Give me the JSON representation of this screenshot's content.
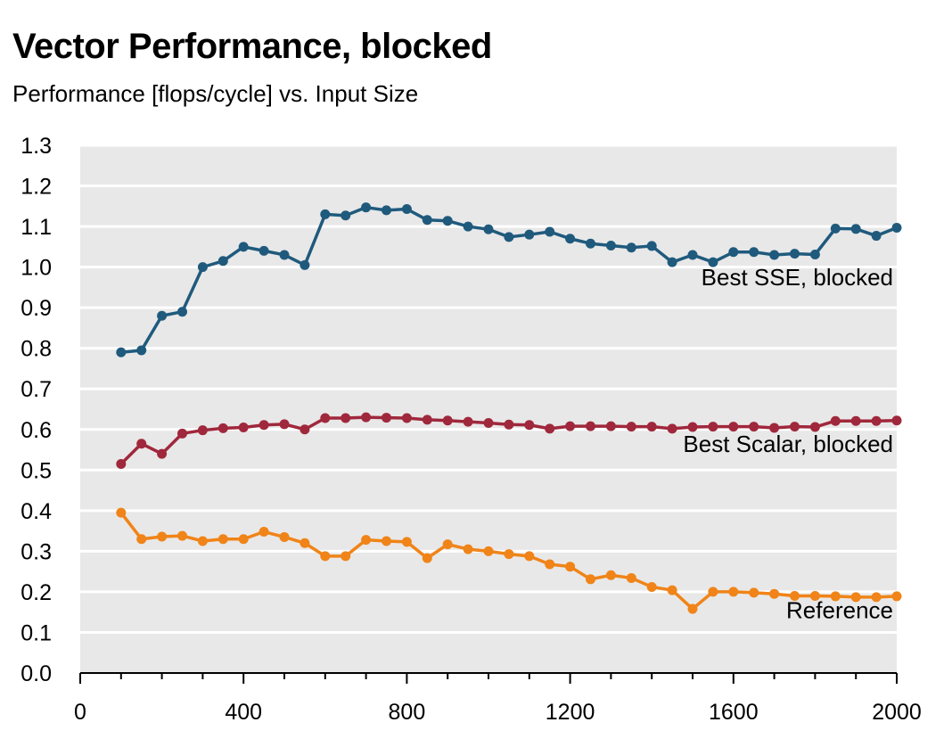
{
  "title": "Vector Performance, blocked",
  "subtitle": "Performance [flops/cycle] vs. Input Size",
  "chart_data": {
    "type": "line",
    "title": "Vector Performance, blocked",
    "subtitle": "Performance [flops/cycle] vs. Input Size",
    "xlabel": "",
    "ylabel": "",
    "xlim": [
      0,
      2000
    ],
    "ylim": [
      0,
      1.3
    ],
    "x_ticks": [
      "0",
      "400",
      "800",
      "1200",
      "1600",
      "2000"
    ],
    "y_ticks": [
      "0.0",
      "0.1",
      "0.2",
      "0.3",
      "0.4",
      "0.5",
      "0.6",
      "0.7",
      "0.8",
      "0.9",
      "1.0",
      "1.1",
      "1.2",
      "1.3"
    ],
    "grid": true,
    "background": "#e8e8e8",
    "x": [
      100,
      150,
      200,
      250,
      300,
      350,
      400,
      450,
      500,
      550,
      600,
      650,
      700,
      750,
      800,
      850,
      900,
      950,
      1000,
      1050,
      1100,
      1150,
      1200,
      1250,
      1300,
      1350,
      1400,
      1450,
      1500,
      1550,
      1600,
      1650,
      1700,
      1750,
      1800,
      1850,
      1900,
      1950,
      2000
    ],
    "series": [
      {
        "name": "Best SSE, blocked",
        "color": "#1f5a7d",
        "values": [
          0.79,
          0.795,
          0.88,
          0.89,
          1.0,
          1.015,
          1.05,
          1.04,
          1.03,
          1.005,
          1.13,
          1.127,
          1.147,
          1.14,
          1.143,
          1.116,
          1.114,
          1.1,
          1.093,
          1.074,
          1.08,
          1.087,
          1.07,
          1.058,
          1.053,
          1.048,
          1.052,
          1.012,
          1.03,
          1.012,
          1.037,
          1.037,
          1.03,
          1.033,
          1.031,
          1.095,
          1.094,
          1.077,
          1.097
        ]
      },
      {
        "name": "Best Scalar, blocked",
        "color": "#a0283c",
        "values": [
          0.515,
          0.565,
          0.54,
          0.59,
          0.598,
          0.603,
          0.605,
          0.611,
          0.613,
          0.6,
          0.628,
          0.628,
          0.63,
          0.629,
          0.628,
          0.624,
          0.622,
          0.619,
          0.616,
          0.612,
          0.611,
          0.602,
          0.608,
          0.608,
          0.608,
          0.607,
          0.607,
          0.602,
          0.606,
          0.607,
          0.607,
          0.607,
          0.604,
          0.607,
          0.606,
          0.621,
          0.621,
          0.621,
          0.622
        ]
      },
      {
        "name": "Reference",
        "color": "#f08418",
        "values": [
          0.395,
          0.33,
          0.336,
          0.338,
          0.325,
          0.33,
          0.33,
          0.348,
          0.335,
          0.32,
          0.288,
          0.288,
          0.328,
          0.325,
          0.323,
          0.283,
          0.317,
          0.305,
          0.3,
          0.293,
          0.288,
          0.268,
          0.262,
          0.231,
          0.241,
          0.234,
          0.212,
          0.204,
          0.158,
          0.2,
          0.2,
          0.198,
          0.195,
          0.19,
          0.19,
          0.189,
          0.187,
          0.187,
          0.189
        ]
      }
    ],
    "annotations": [
      {
        "text": "Best SSE, blocked",
        "series": 0,
        "y": 0.955
      },
      {
        "text": "Best Scalar, blocked",
        "series": 1,
        "y": 0.545
      },
      {
        "text": "Reference",
        "series": 2,
        "y": 0.135
      }
    ]
  }
}
